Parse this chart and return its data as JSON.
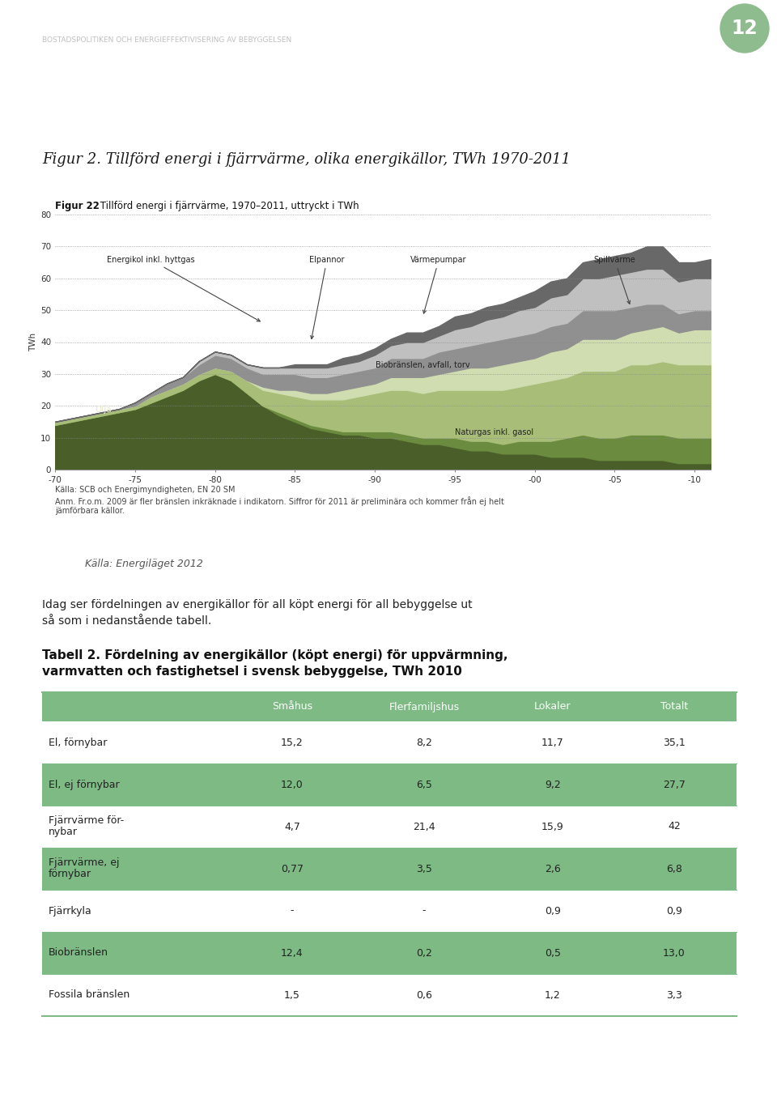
{
  "page_header": "BOSTADSPOLITIKEN OCH ENERGIEFFEKTIVISERING AV BEBYGGELSEN",
  "page_number": "12",
  "page_number_bg": "#8fbc8f",
  "fig_title": "Figur 2. Tillförd energi i fjärrvärme, olika energikällor, TWh 1970-2011",
  "fig22_title": "Tillförd energi i fjärrvärme, 1970–2011, uttryckt i TWh",
  "fig22_title_bold": "Figur 22",
  "source_label": "Källa: Energiläget 2012",
  "chart_source1": "Källa: SCB och Energimyndigheten, EN 20 SM",
  "chart_source2": "Anm. Fr.o.m. 2009 är fler bränslen inkräknade i indikatorn. Siffror för 2011 är preliminära och kommer från ej helt",
  "chart_source3": "jämförbara källor.",
  "intro_text_line1": "Idag ser fördelningen av energikällor för all köpt energi för all bebyggelse ut",
  "intro_text_line2": "så som i nedanstående tabell.",
  "table_title_line1": "Tabell 2. Fördelning av energikällor (köpt energi) för uppvärmning,",
  "table_title_line2": "varmvatten och fastighetsel i svensk bebyggelse, TWh 2010",
  "table_rows": [
    {
      "label": "El, förnybar",
      "values": [
        "15,2",
        "8,2",
        "11,7",
        "35,1"
      ],
      "shaded": false
    },
    {
      "label": "El, ej förnybar",
      "values": [
        "12,0",
        "6,5",
        "9,2",
        "27,7"
      ],
      "shaded": true
    },
    {
      "label": "Fjärrvärme för-\nnybar",
      "values": [
        "4,7",
        "21,4",
        "15,9",
        "42"
      ],
      "shaded": false
    },
    {
      "label": "Fjärrvärme, ej\nförnybar",
      "values": [
        "0,77",
        "3,5",
        "2,6",
        "6,8"
      ],
      "shaded": true
    },
    {
      "label": "Fjärrkyla",
      "values": [
        "-",
        "-",
        "0,9",
        "0,9"
      ],
      "shaded": false
    },
    {
      "label": "Biobränslen",
      "values": [
        "12,4",
        "0,2",
        "0,5",
        "13,0"
      ],
      "shaded": true
    },
    {
      "label": "Fossila bränslen",
      "values": [
        "1,5",
        "0,6",
        "1,2",
        "3,3"
      ],
      "shaded": false
    }
  ],
  "table_shaded_color": "#7dba84",
  "table_header_color": "#7dba84",
  "background_color": "#ffffff",
  "header_text_color": "#aaaaaa",
  "colors": {
    "olja": "#4a5e2a",
    "naturgas": "#6b8c3e",
    "biobranslen": "#a8be78",
    "varmepumpar": "#d0ddb0",
    "elpannor": "#909090",
    "spillvarme": "#c0c0c0",
    "energikol": "#686868"
  },
  "yticks": [
    0,
    10,
    20,
    30,
    40,
    50,
    60,
    70,
    80
  ],
  "x_tick_years": [
    1970,
    1975,
    1980,
    1985,
    1990,
    1995,
    2000,
    2005,
    2010
  ],
  "x_tick_labels": [
    "-70",
    "-75",
    "-80",
    "-85",
    "-90",
    "-95",
    "-00",
    "-05",
    "-10"
  ]
}
